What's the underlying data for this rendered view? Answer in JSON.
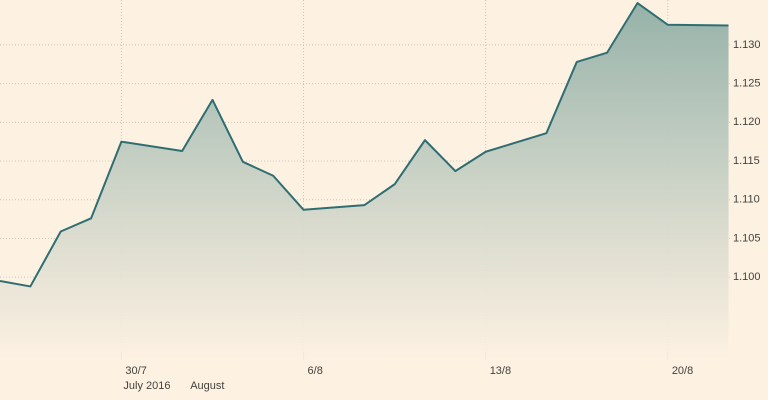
{
  "chart_data": {
    "type": "area",
    "x": [
      0,
      1,
      2,
      3,
      4,
      6,
      7,
      8,
      9,
      10,
      12,
      13,
      14,
      15,
      16,
      18,
      19,
      20,
      21,
      22,
      24
    ],
    "series": [
      {
        "color": "#2e6e72",
        "values": [
          1.0995,
          1.0988,
          1.1059,
          1.1076,
          1.1175,
          1.1163,
          1.1229,
          1.1149,
          1.1131,
          1.1087,
          1.1093,
          1.112,
          1.1177,
          1.1137,
          1.1162,
          1.1186,
          1.1278,
          1.129,
          1.1354,
          1.1326,
          1.1325
        ]
      }
    ],
    "xlim": [
      0,
      25.3
    ],
    "ylim": [
      1.0893,
      1.1358
    ],
    "xticks": [
      {
        "value": 4,
        "label": "30/7"
      },
      {
        "value": 10,
        "label": "6/8"
      },
      {
        "value": 16,
        "label": "13/8"
      },
      {
        "value": 22,
        "label": "20/8"
      }
    ],
    "yticks": [
      {
        "value": 1.1,
        "label": "1.100"
      },
      {
        "value": 1.105,
        "label": "1.105"
      },
      {
        "value": 1.11,
        "label": "1.110"
      },
      {
        "value": 1.115,
        "label": "1.115"
      },
      {
        "value": 1.12,
        "label": "1.120"
      },
      {
        "value": 1.125,
        "label": "1.125"
      },
      {
        "value": 1.13,
        "label": "1.130"
      }
    ],
    "period_labels": [
      {
        "value": 4,
        "label": "July 2016"
      },
      {
        "value": 6.2,
        "label": "August"
      }
    ],
    "grid": true
  }
}
